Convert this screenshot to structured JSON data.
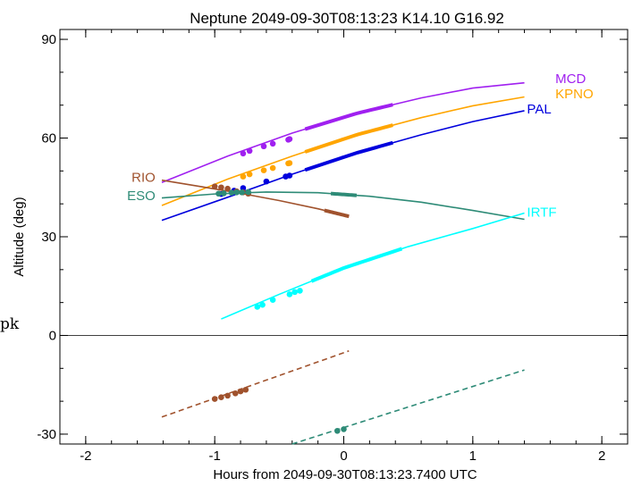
{
  "chart_data": {
    "type": "line",
    "title": "Neptune 2049-09-30T08:13:23  K14.10  G16.92",
    "xlabel": "Hours from 2049-09-30T08:13:23.7400 UTC",
    "ylabel": "Altitude (deg)",
    "xlim": [
      -2.2,
      2.2
    ],
    "ylim": [
      -33,
      93
    ],
    "xticks": [
      -2,
      -1,
      0,
      1,
      2
    ],
    "yticks": [
      -30,
      0,
      30,
      60,
      90
    ],
    "grid": false,
    "zero_line": 0,
    "series": [
      {
        "name": "MCD",
        "color": "#a020f0",
        "x": [
          -1.41,
          -0.9,
          -0.4,
          0.1,
          0.6,
          1.0,
          1.4
        ],
        "y": [
          46.5,
          54.5,
          61.5,
          67.5,
          72.2,
          75.2,
          76.8
        ],
        "dots": [
          [
            -0.78,
            55.3
          ],
          [
            -0.73,
            56.1
          ],
          [
            -0.62,
            57.5
          ],
          [
            -0.55,
            58.3
          ],
          [
            -0.43,
            59.5
          ],
          [
            -0.42,
            59.7
          ]
        ],
        "thick": [
          [
            -0.3,
            0.38
          ]
        ]
      },
      {
        "name": "KPNO",
        "color": "#ffa500",
        "x": [
          -1.41,
          -0.9,
          -0.4,
          0.1,
          0.6,
          1.0,
          1.4
        ],
        "y": [
          39.5,
          47.5,
          54.5,
          61.0,
          66.2,
          69.8,
          72.5
        ],
        "dots": [
          [
            -0.78,
            48.3
          ],
          [
            -0.73,
            49.0
          ],
          [
            -0.62,
            50.2
          ],
          [
            -0.55,
            50.9
          ],
          [
            -0.43,
            52.3
          ],
          [
            -0.42,
            52.4
          ]
        ],
        "thick": [
          [
            -0.3,
            0.38
          ]
        ]
      },
      {
        "name": "PAL",
        "color": "#0000dd",
        "x": [
          -1.41,
          -0.9,
          -0.4,
          0.1,
          0.6,
          1.0,
          1.4
        ],
        "y": [
          35.0,
          42.0,
          49.0,
          55.5,
          61.0,
          65.0,
          68.3
        ],
        "dots": [
          [
            -0.95,
            43.0
          ],
          [
            -0.85,
            44.0
          ],
          [
            -0.78,
            44.8
          ],
          [
            -0.6,
            46.8
          ],
          [
            -0.45,
            48.3
          ],
          [
            -0.42,
            48.6
          ]
        ],
        "thick": [
          [
            -0.3,
            0.38
          ]
        ]
      },
      {
        "name": "RIO",
        "color": "#a0522d",
        "x": [
          -1.41,
          -1.1,
          -0.8,
          -0.5,
          -0.2,
          0.04
        ],
        "y": [
          47.2,
          45.2,
          43.2,
          41.0,
          38.5,
          36.2
        ],
        "dots": [
          [
            -1.0,
            45.3
          ],
          [
            -0.95,
            45.0
          ],
          [
            -0.9,
            44.6
          ],
          [
            -0.83,
            43.8
          ],
          [
            -0.78,
            43.5
          ],
          [
            -0.74,
            43.1
          ]
        ],
        "thick": [
          [
            -0.15,
            0.04
          ]
        ]
      },
      {
        "name": "ESO",
        "color": "#2e8b77",
        "x": [
          -1.41,
          -1.0,
          -0.6,
          -0.2,
          0.2,
          0.6,
          1.0,
          1.4
        ],
        "y": [
          41.8,
          43.0,
          43.6,
          43.4,
          42.3,
          40.5,
          38.0,
          35.3
        ],
        "dots": [
          [
            -0.97,
            43.1
          ],
          [
            -0.93,
            43.2
          ],
          [
            -0.87,
            43.4
          ],
          [
            -0.83,
            43.5
          ],
          [
            -0.79,
            43.5
          ],
          [
            -0.74,
            43.6
          ]
        ],
        "thick": [
          [
            -0.1,
            0.1
          ]
        ]
      },
      {
        "name": "IRTF",
        "color": "#00ffff",
        "x": [
          -0.95,
          -0.5,
          0.0,
          0.5,
          1.0,
          1.4
        ],
        "y": [
          5.0,
          12.5,
          20.5,
          27.0,
          32.5,
          37.2
        ],
        "dots": [
          [
            -0.67,
            8.7
          ],
          [
            -0.63,
            9.3
          ],
          [
            -0.55,
            10.8
          ],
          [
            -0.42,
            12.5
          ],
          [
            -0.38,
            13.2
          ],
          [
            -0.34,
            13.6
          ]
        ],
        "thick": [
          [
            -0.25,
            0.45
          ]
        ]
      }
    ],
    "dashed_series": [
      {
        "name": "RIO",
        "color": "#a0522d",
        "x": [
          -1.41,
          0.04
        ],
        "y": [
          -24.8,
          -4.7
        ],
        "dots": [
          [
            -1.0,
            -19.3
          ],
          [
            -0.95,
            -18.8
          ],
          [
            -0.9,
            -18.3
          ],
          [
            -0.84,
            -17.6
          ],
          [
            -0.8,
            -17.0
          ],
          [
            -0.76,
            -16.5
          ]
        ]
      },
      {
        "name": "ESO",
        "color": "#2e8b77",
        "x": [
          -0.4,
          1.4
        ],
        "y": [
          -33.0,
          -10.5
        ],
        "dots": [
          [
            -0.05,
            -29.0
          ],
          [
            0.0,
            -28.5
          ]
        ]
      }
    ],
    "labels": [
      {
        "text": "MCD",
        "color": "#a020f0",
        "anchor": "start",
        "at": [
          1.64,
          78.0
        ]
      },
      {
        "text": "KPNO",
        "color": "#ffa500",
        "anchor": "start",
        "at": [
          1.64,
          73.5
        ]
      },
      {
        "text": "PAL",
        "color": "#0000dd",
        "anchor": "start",
        "at": [
          1.42,
          68.8
        ]
      },
      {
        "text": "RIO",
        "color": "#a0522d",
        "anchor": "end",
        "at": [
          -1.46,
          48.0
        ]
      },
      {
        "text": "ESO",
        "color": "#2e8b77",
        "anchor": "end",
        "at": [
          -1.46,
          42.5
        ]
      },
      {
        "text": "IRTF",
        "color": "#00ffff",
        "anchor": "start",
        "at": [
          1.42,
          37.5
        ]
      }
    ],
    "stray_text": "pk"
  }
}
